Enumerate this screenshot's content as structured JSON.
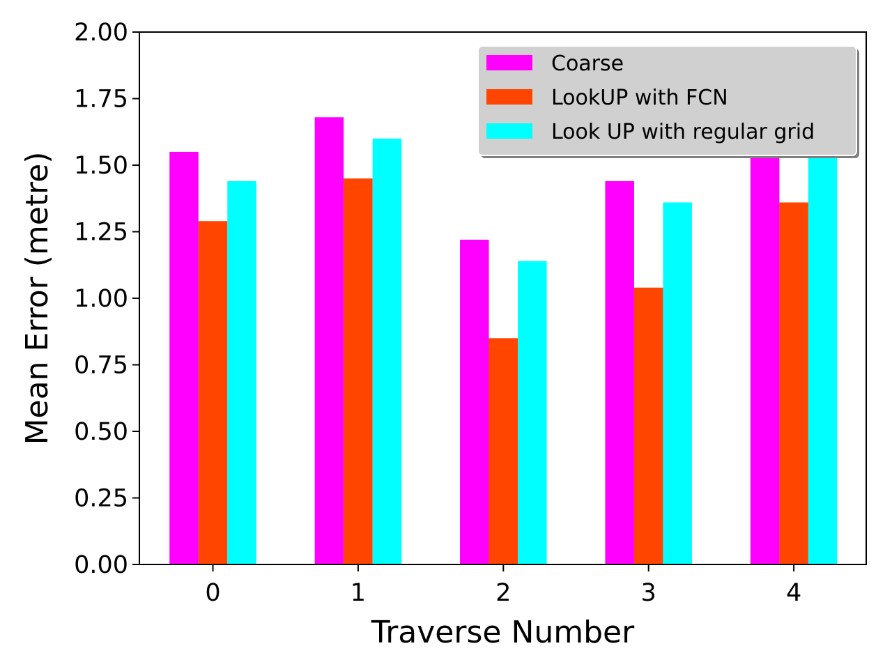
{
  "chart_data": {
    "type": "bar",
    "categories": [
      "0",
      "1",
      "2",
      "3",
      "4"
    ],
    "series": [
      {
        "name": "Coarse",
        "color": "#ff00ff",
        "values": [
          1.55,
          1.68,
          1.22,
          1.44,
          1.61
        ]
      },
      {
        "name": "LookUP with FCN",
        "color": "#ff4500",
        "values": [
          1.29,
          1.45,
          0.85,
          1.04,
          1.36
        ]
      },
      {
        "name": "Look UP with regular grid",
        "color": "#00ffff",
        "values": [
          1.44,
          1.6,
          1.14,
          1.36,
          1.58
        ]
      }
    ],
    "xlabel": "Traverse Number",
    "ylabel": "Mean Error (metre)",
    "ylim": [
      0,
      2.0
    ],
    "yticks": [
      "0.00",
      "0.25",
      "0.50",
      "0.75",
      "1.00",
      "1.25",
      "1.50",
      "1.75",
      "2.00"
    ],
    "grid": false,
    "legend_position": "top-right",
    "legend_background": "#d0d0d0"
  }
}
